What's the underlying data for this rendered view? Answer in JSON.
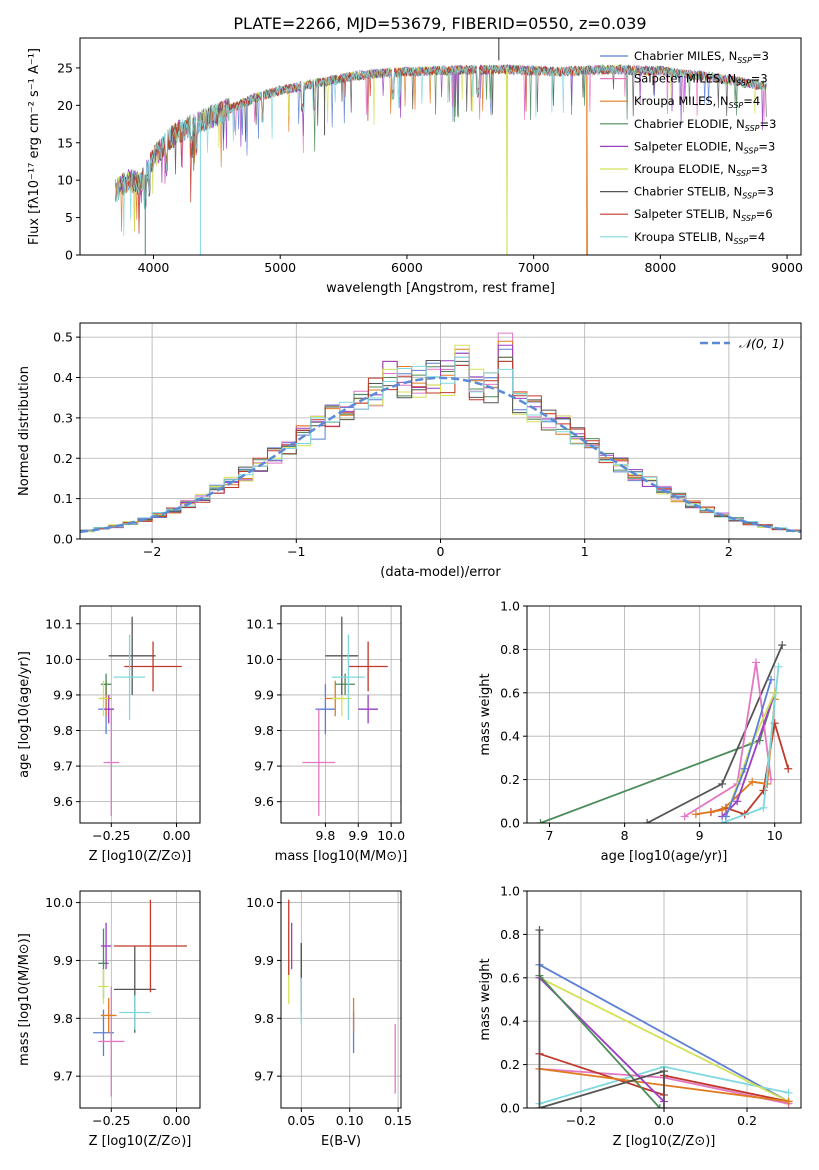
{
  "figure": {
    "title": "PLATE=2266, MJD=53679, FIBERID=0550, z=0.039"
  },
  "colors": {
    "grid": "#b0b0b0",
    "axis": "#000000",
    "normal_curve": "#5b8bd6"
  },
  "chart_data": [
    {
      "id": "spectrum",
      "type": "line",
      "title": "PLATE=2266, MJD=53679, FIBERID=0550, z=0.039",
      "xlabel": "wavelength [Angstrom, rest frame]",
      "ylabel": "Flux [fλ10⁻¹⁷ erg cm⁻² s⁻¹ A⁻¹]",
      "xlim": [
        3420,
        9110
      ],
      "ylim": [
        0,
        29
      ],
      "xticks": [
        4000,
        5000,
        6000,
        7000,
        8000,
        9000
      ],
      "yticks": [
        0,
        5,
        10,
        15,
        20,
        25
      ],
      "grid": false,
      "legend_position": "top-right",
      "continuum_x": [
        3700,
        3800,
        3900,
        4000,
        4100,
        4200,
        4400,
        4600,
        4800,
        5000,
        5300,
        5600,
        6000,
        6400,
        6800,
        7200,
        7600,
        8000,
        8400,
        8840
      ],
      "continuum_y": [
        8.5,
        10.0,
        9.5,
        13.0,
        15.0,
        16.5,
        18.0,
        19.5,
        21.0,
        22.0,
        23.0,
        24.0,
        24.5,
        24.7,
        24.8,
        24.5,
        24.8,
        24.6,
        23.8,
        22.5
      ],
      "absorption_lines_x": [
        3934,
        3968,
        4101,
        4300,
        4340,
        4861,
        5175,
        5270,
        5890,
        6563
      ],
      "series": [
        {
          "name": "Chabrier MILES, N_SSP=3",
          "color": "#5b7fd6",
          "value_span": [
            0,
            28
          ]
        },
        {
          "name": "Salpeter MILES, N_SSP=3",
          "color": "#e377c2",
          "value_span": [
            0,
            28
          ]
        },
        {
          "name": "Kroupa MILES, N_SSP=4",
          "color": "#e07b20",
          "cutoff_x": 7420
        },
        {
          "name": "Chabrier ELODIE, N_SSP=3",
          "color": "#4c8c5a"
        },
        {
          "name": "Salpeter ELODIE, N_SSP=3",
          "color": "#9b3ec4"
        },
        {
          "name": "Kroupa ELODIE, N_SSP=3",
          "color": "#d4e157",
          "dip_x": 6790
        },
        {
          "name": "Chabrier STELIB, N_SSP=3",
          "color": "#555555"
        },
        {
          "name": "Salpeter STELIB, N_SSP=6",
          "color": "#c0392b"
        },
        {
          "name": "Kroupa STELIB, N_SSP=4",
          "color": "#7fd8e0"
        }
      ],
      "legend_entries": [
        {
          "pre": "Chabrier MILES, N",
          "sub": "SSP",
          "post": "=3",
          "color": "#5b7fd6"
        },
        {
          "pre": "Salpeter MILES, N",
          "sub": "SSP",
          "post": "=3",
          "color": "#e377c2"
        },
        {
          "pre": "Kroupa MILES, N",
          "sub": "SSP",
          "post": "=4",
          "color": "#e07b20"
        },
        {
          "pre": "Chabrier ELODIE, N",
          "sub": "SSP",
          "post": "=3",
          "color": "#4c8c5a"
        },
        {
          "pre": "Salpeter ELODIE, N",
          "sub": "SSP",
          "post": "=3",
          "color": "#9b3ec4"
        },
        {
          "pre": "Kroupa ELODIE, N",
          "sub": "SSP",
          "post": "=3",
          "color": "#d4e157"
        },
        {
          "pre": "Chabrier STELIB, N",
          "sub": "SSP",
          "post": "=3",
          "color": "#555555"
        },
        {
          "pre": "Salpeter STELIB, N",
          "sub": "SSP",
          "post": "=6",
          "color": "#c0392b"
        },
        {
          "pre": "Kroupa STELIB, N",
          "sub": "SSP",
          "post": "=4",
          "color": "#7fd8e0"
        }
      ]
    },
    {
      "id": "residual_hist",
      "type": "step-histogram",
      "xlabel": "(data-model)/error",
      "ylabel": "Normed distribution",
      "xlim": [
        -2.5,
        2.5
      ],
      "ylim": [
        0,
        0.535
      ],
      "xticks": [
        -2,
        -1,
        0,
        1,
        2
      ],
      "yticks": [
        0.0,
        0.1,
        0.2,
        0.3,
        0.4,
        0.5
      ],
      "bin_width": 0.1,
      "grid": true,
      "legend": {
        "label": "𝒩(0, 1)",
        "position": "top-right"
      },
      "normal_curve": {
        "mean": 0,
        "sigma": 1
      },
      "series_colors": [
        "#5b7fd6",
        "#e377c2",
        "#e07b20",
        "#4c8c5a",
        "#9b3ec4",
        "#d4e157",
        "#555555",
        "#c0392b",
        "#7fd8e0"
      ],
      "spikes": [
        {
          "x": 0.45,
          "values": [
            0.47,
            0.51,
            0.49,
            0.44,
            0.48,
            0.45,
            0.45,
            0.44,
            0.42
          ]
        },
        {
          "x": 0.15,
          "values": [
            0.46,
            0.45,
            0.47,
            0.43,
            0.46,
            0.48,
            0.44,
            0.43,
            0.45
          ]
        },
        {
          "x": -0.35,
          "values": [
            0.4,
            0.41,
            0.44,
            0.4,
            0.44,
            0.42,
            0.38,
            0.37,
            0.39
          ]
        }
      ]
    },
    {
      "id": "age_vs_Z",
      "type": "errorbar",
      "xlabel": "Z [log10(Z/Z⊙)]",
      "ylabel": "age [log10(age/yr)]",
      "xlim": [
        -0.37,
        0.09
      ],
      "ylim": [
        9.54,
        10.15
      ],
      "xticks": [
        -0.25,
        0.0
      ],
      "yticks": [
        9.6,
        9.7,
        9.8,
        9.9,
        10.0,
        10.1
      ],
      "grid": true,
      "points": [
        {
          "color": "#5b7fd6",
          "x": -0.27,
          "xerr": 0.03,
          "y": 9.86,
          "yerr": 0.07
        },
        {
          "color": "#e377c2",
          "x": -0.25,
          "xerr": 0.03,
          "y": 9.71,
          "yerr": 0.15
        },
        {
          "color": "#e07b20",
          "x": -0.27,
          "xerr": 0.02,
          "y": 9.89,
          "yerr": 0.05
        },
        {
          "color": "#4c8c5a",
          "x": -0.27,
          "xerr": 0.02,
          "y": 9.93,
          "yerr": 0.03
        },
        {
          "color": "#9b3ec4",
          "x": -0.26,
          "xerr": 0.02,
          "y": 9.86,
          "yerr": 0.04
        },
        {
          "color": "#d4e157",
          "x": -0.28,
          "xerr": 0.02,
          "y": 9.89,
          "yerr": 0.05
        },
        {
          "color": "#555555",
          "x": -0.17,
          "xerr": 0.09,
          "y": 10.01,
          "yerr": 0.11
        },
        {
          "color": "#c0392b",
          "x": -0.09,
          "xerr": 0.11,
          "y": 9.98,
          "yerr": 0.07
        },
        {
          "color": "#7fd8e0",
          "x": -0.18,
          "xerr": 0.06,
          "y": 9.95,
          "yerr": 0.12
        }
      ]
    },
    {
      "id": "age_vs_mass",
      "type": "errorbar",
      "xlabel": "mass [log10(M/M⊙)]",
      "ylabel": "",
      "xlim": [
        9.665,
        10.03
      ],
      "ylim": [
        9.54,
        10.15
      ],
      "xticks": [
        9.8,
        9.9,
        10.0
      ],
      "yticks": [
        9.6,
        9.7,
        9.8,
        9.9,
        10.0,
        10.1
      ],
      "grid": true,
      "points": [
        {
          "color": "#5b7fd6",
          "x": 9.8,
          "xerr": 0.03,
          "y": 9.86,
          "yerr": 0.07
        },
        {
          "color": "#e377c2",
          "x": 9.78,
          "xerr": 0.05,
          "y": 9.71,
          "yerr": 0.15
        },
        {
          "color": "#e07b20",
          "x": 9.83,
          "xerr": 0.03,
          "y": 9.89,
          "yerr": 0.05
        },
        {
          "color": "#4c8c5a",
          "x": 9.86,
          "xerr": 0.03,
          "y": 9.93,
          "yerr": 0.03
        },
        {
          "color": "#9b3ec4",
          "x": 9.93,
          "xerr": 0.03,
          "y": 9.86,
          "yerr": 0.04
        },
        {
          "color": "#d4e157",
          "x": 9.85,
          "xerr": 0.03,
          "y": 9.89,
          "yerr": 0.05
        },
        {
          "color": "#555555",
          "x": 9.85,
          "xerr": 0.05,
          "y": 10.01,
          "yerr": 0.11
        },
        {
          "color": "#c0392b",
          "x": 9.93,
          "xerr": 0.06,
          "y": 9.98,
          "yerr": 0.07
        },
        {
          "color": "#7fd8e0",
          "x": 9.87,
          "xerr": 0.05,
          "y": 9.95,
          "yerr": 0.12
        }
      ]
    },
    {
      "id": "weight_vs_age",
      "type": "line",
      "xlabel": "age [log10(age/yr)]",
      "ylabel": "mass weight",
      "xlim": [
        6.7,
        10.35
      ],
      "ylim": [
        0,
        1
      ],
      "xticks": [
        7,
        8,
        9,
        10
      ],
      "yticks": [
        0.0,
        0.2,
        0.4,
        0.6,
        0.8,
        1.0
      ],
      "grid": true,
      "series": [
        {
          "color": "#4c8c5a",
          "points": [
            [
              6.88,
              0.0
            ],
            [
              9.8,
              0.38
            ],
            [
              10.0,
              0.6
            ]
          ]
        },
        {
          "color": "#555555",
          "points": [
            [
              8.3,
              0.0
            ],
            [
              9.3,
              0.18
            ],
            [
              10.1,
              0.82
            ]
          ]
        },
        {
          "color": "#c0392b",
          "points": [
            [
              9.15,
              0.05
            ],
            [
              9.35,
              0.07
            ],
            [
              9.6,
              0.04
            ],
            [
              9.85,
              0.15
            ],
            [
              10.0,
              0.46
            ],
            [
              10.18,
              0.25
            ]
          ]
        },
        {
          "color": "#e07b20",
          "points": [
            [
              8.95,
              0.04
            ],
            [
              9.3,
              0.06
            ],
            [
              9.7,
              0.19
            ],
            [
              9.9,
              0.18
            ],
            [
              10.0,
              0.57
            ]
          ]
        },
        {
          "color": "#e377c2",
          "points": [
            [
              8.8,
              0.03
            ],
            [
              9.5,
              0.18
            ],
            [
              9.75,
              0.74
            ],
            [
              9.95,
              0.2
            ]
          ]
        },
        {
          "color": "#9b3ec4",
          "points": [
            [
              9.3,
              0.03
            ],
            [
              9.5,
              0.1
            ],
            [
              10.0,
              0.6
            ]
          ]
        },
        {
          "color": "#d4e157",
          "points": [
            [
              9.35,
              0.03
            ],
            [
              9.7,
              0.37
            ],
            [
              10.0,
              0.6
            ]
          ]
        },
        {
          "color": "#5b7fd6",
          "points": [
            [
              9.35,
              0.03
            ],
            [
              9.6,
              0.25
            ],
            [
              9.95,
              0.66
            ]
          ]
        },
        {
          "color": "#7fd8e0",
          "points": [
            [
              9.3,
              0.0
            ],
            [
              9.85,
              0.07
            ],
            [
              10.05,
              0.72
            ]
          ]
        }
      ]
    },
    {
      "id": "mass_vs_Z",
      "type": "errorbar",
      "xlabel": "Z [log10(Z/Z⊙)]",
      "ylabel": "mass [log10(M/M⊙)]",
      "xlim": [
        -0.37,
        0.09
      ],
      "ylim": [
        9.645,
        10.02
      ],
      "xticks": [
        -0.25,
        0.0
      ],
      "yticks": [
        9.7,
        9.8,
        9.9,
        10.0
      ],
      "grid": true,
      "points": [
        {
          "color": "#5b7fd6",
          "x": -0.28,
          "xerr": 0.04,
          "y": 9.775,
          "yerr": 0.04
        },
        {
          "color": "#e377c2",
          "x": -0.25,
          "xerr": 0.05,
          "y": 9.76,
          "yerr": 0.095
        },
        {
          "color": "#e07b20",
          "x": -0.26,
          "xerr": 0.03,
          "y": 9.805,
          "yerr": 0.03
        },
        {
          "color": "#4c8c5a",
          "x": -0.28,
          "xerr": 0.02,
          "y": 9.895,
          "yerr": 0.06
        },
        {
          "color": "#9b3ec4",
          "x": -0.27,
          "xerr": 0.02,
          "y": 9.925,
          "yerr": 0.04
        },
        {
          "color": "#d4e157",
          "x": -0.28,
          "xerr": 0.02,
          "y": 9.855,
          "yerr": 0.03
        },
        {
          "color": "#555555",
          "x": -0.16,
          "xerr": 0.08,
          "y": 9.85,
          "yerr": 0.075
        },
        {
          "color": "#c0392b",
          "x": -0.1,
          "xerr": 0.14,
          "y": 9.925,
          "yerr": 0.08
        },
        {
          "color": "#7fd8e0",
          "x": -0.16,
          "xerr": 0.06,
          "y": 9.81,
          "yerr": 0.03
        }
      ]
    },
    {
      "id": "mass_vs_ebv",
      "type": "errorbar",
      "xlabel": "E(B-V)",
      "ylabel": "",
      "xlim": [
        0.029,
        0.153
      ],
      "ylim": [
        9.645,
        10.02
      ],
      "xticks": [
        0.05,
        0.1,
        0.15
      ],
      "yticks": [
        9.7,
        9.8,
        9.9,
        10.0
      ],
      "grid": true,
      "points": [
        {
          "color": "#5b7fd6",
          "x": 0.104,
          "y": 9.775,
          "yerr": 0.035
        },
        {
          "color": "#e377c2",
          "x": 0.147,
          "y": 9.73,
          "yerr": 0.06
        },
        {
          "color": "#e07b20",
          "x": 0.104,
          "y": 9.805,
          "yerr": 0.03
        },
        {
          "color": "#4c8c5a",
          "x": 0.05,
          "y": 9.89,
          "yerr": 0.04
        },
        {
          "color": "#9b3ec4",
          "x": 0.04,
          "y": 9.925,
          "yerr": 0.04
        },
        {
          "color": "#d4e157",
          "x": 0.037,
          "y": 9.86,
          "yerr": 0.035
        },
        {
          "color": "#555555",
          "x": 0.05,
          "y": 9.87,
          "yerr": 0.06
        },
        {
          "color": "#c0392b",
          "x": 0.037,
          "y": 9.94,
          "yerr": 0.065
        },
        {
          "color": "#7fd8e0",
          "x": 0.05,
          "y": 9.83,
          "yerr": 0.04
        }
      ]
    },
    {
      "id": "weight_vs_Z",
      "type": "line",
      "xlabel": "Z [log10(Z/Z⊙)]",
      "ylabel": "mass weight",
      "xlim": [
        -0.33,
        0.33
      ],
      "ylim": [
        0,
        1
      ],
      "xticks": [
        -0.2,
        0.0,
        0.2
      ],
      "yticks": [
        0.0,
        0.2,
        0.4,
        0.6,
        0.8,
        1.0
      ],
      "grid": true,
      "series": [
        {
          "color": "#5b7fd6",
          "points": [
            [
              -0.3,
              0.66
            ],
            [
              0.3,
              0.03
            ]
          ]
        },
        {
          "color": "#7fd8e0",
          "points": [
            [
              -0.3,
              0.02
            ],
            [
              0.0,
              0.19
            ],
            [
              0.3,
              0.07
            ]
          ]
        },
        {
          "color": "#d4e157",
          "points": [
            [
              -0.3,
              0.6
            ],
            [
              0.3,
              0.03
            ]
          ]
        },
        {
          "color": "#e377c2",
          "points": [
            [
              -0.3,
              0.18
            ],
            [
              0.0,
              0.14
            ],
            [
              0.3,
              0.02
            ]
          ]
        },
        {
          "color": "#c0392b",
          "points": [
            [
              -0.3,
              0.25
            ],
            [
              0.0,
              0.06
            ],
            [
              0.0,
              0.15
            ],
            [
              0.3,
              0.03
            ]
          ]
        },
        {
          "color": "#e07b20",
          "points": [
            [
              -0.3,
              0.18
            ],
            [
              0.3,
              0.03
            ]
          ]
        },
        {
          "color": "#9b3ec4",
          "points": [
            [
              -0.3,
              0.6
            ],
            [
              0.0,
              0.03
            ]
          ]
        },
        {
          "color": "#4c8c5a",
          "points": [
            [
              -0.3,
              0.61
            ],
            [
              -0.01,
              0.0
            ]
          ]
        },
        {
          "color": "#555555",
          "points": [
            [
              -0.3,
              0.82
            ],
            [
              -0.3,
              0.0
            ],
            [
              0.0,
              0.17
            ],
            [
              0.0,
              0.0
            ]
          ]
        }
      ]
    }
  ]
}
